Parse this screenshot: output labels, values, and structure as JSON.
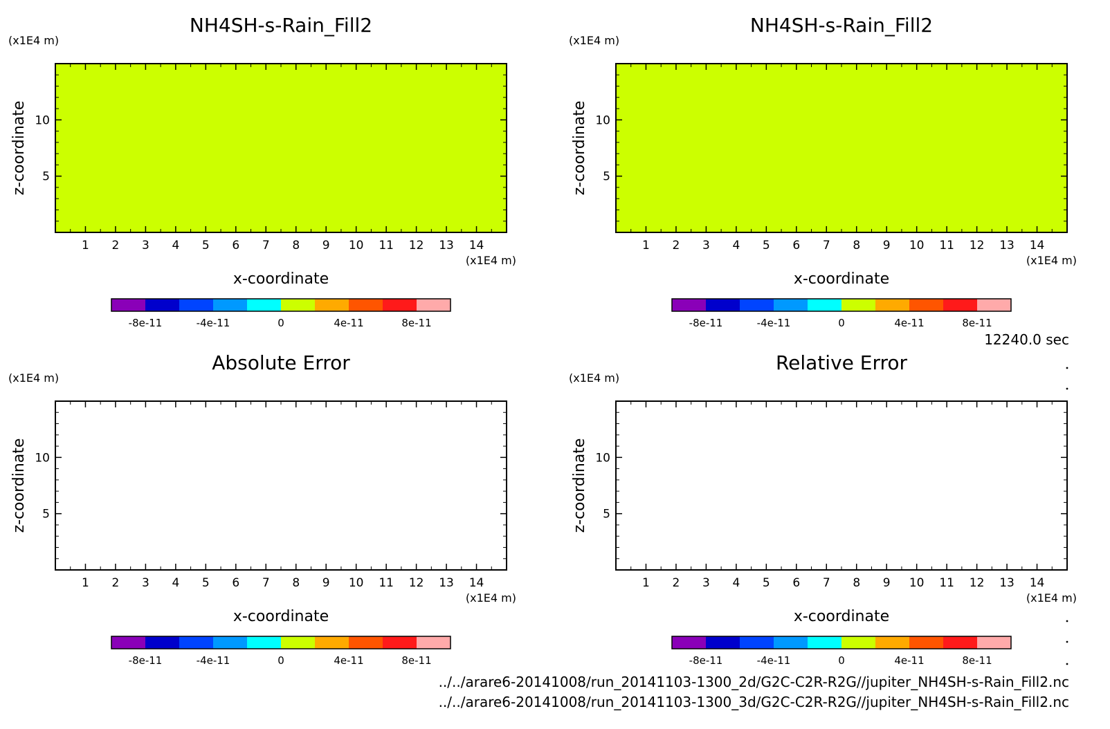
{
  "time_label": "12240.0 sec",
  "file_paths": [
    "../../arare6-20141008/run_20141103-1300_2d/G2C-C2R-R2G//jupiter_NH4SH-s-Rain_Fill2.nc",
    "../../arare6-20141008/run_20141103-1300_3d/G2C-C2R-R2G//jupiter_NH4SH-s-Rain_Fill2.nc"
  ],
  "colorbar": {
    "colors": [
      "#8a00b8",
      "#0000cc",
      "#0044ff",
      "#0099ff",
      "#00ffff",
      "#ccff00",
      "#ffaa00",
      "#ff5500",
      "#ff1a1a",
      "#ffaaaa"
    ],
    "bounds": [
      -1e-10,
      -8e-11,
      -6e-11,
      -4e-11,
      -2e-11,
      0,
      2e-11,
      4e-11,
      6e-11,
      8e-11,
      1e-10
    ],
    "tick_labels": [
      "-8e-11",
      "-4e-11",
      "0",
      "4e-11",
      "8e-11"
    ]
  },
  "chart_data": [
    {
      "type": "heatmap",
      "title": "NH4SH-s-Rain_Fill2",
      "xlabel": "x-coordinate",
      "ylabel": "z-coordinate",
      "x_unit": "(x1E4 m)",
      "z_unit": "(x1E4 m)",
      "xlim": [
        0,
        15
      ],
      "zlim": [
        0,
        15
      ],
      "x_ticks": [
        "1",
        "2",
        "3",
        "4",
        "5",
        "6",
        "7",
        "8",
        "9",
        "10",
        "11",
        "12",
        "13",
        "14"
      ],
      "z_ticks": [
        "5",
        "10"
      ],
      "field_value": 0,
      "fill": true
    },
    {
      "type": "heatmap",
      "title": "NH4SH-s-Rain_Fill2",
      "xlabel": "x-coordinate",
      "ylabel": "z-coordinate",
      "x_unit": "(x1E4 m)",
      "z_unit": "(x1E4 m)",
      "xlim": [
        0,
        15
      ],
      "zlim": [
        0,
        15
      ],
      "x_ticks": [
        "1",
        "2",
        "3",
        "4",
        "5",
        "6",
        "7",
        "8",
        "9",
        "10",
        "11",
        "12",
        "13",
        "14"
      ],
      "z_ticks": [
        "5",
        "10"
      ],
      "field_value": 0,
      "fill": true
    },
    {
      "type": "heatmap",
      "title": "Absolute Error",
      "xlabel": "x-coordinate",
      "ylabel": "z-coordinate",
      "x_unit": "(x1E4 m)",
      "z_unit": "(x1E4 m)",
      "xlim": [
        0,
        15
      ],
      "zlim": [
        0,
        15
      ],
      "x_ticks": [
        "1",
        "2",
        "3",
        "4",
        "5",
        "6",
        "7",
        "8",
        "9",
        "10",
        "11",
        "12",
        "13",
        "14"
      ],
      "z_ticks": [
        "5",
        "10"
      ],
      "field_value": null,
      "fill": false
    },
    {
      "type": "heatmap",
      "title": "Relative Error",
      "xlabel": "x-coordinate",
      "ylabel": "z-coordinate",
      "x_unit": "(x1E4 m)",
      "z_unit": "(x1E4 m)",
      "xlim": [
        0,
        15
      ],
      "zlim": [
        0,
        15
      ],
      "x_ticks": [
        "1",
        "2",
        "3",
        "4",
        "5",
        "6",
        "7",
        "8",
        "9",
        "10",
        "11",
        "12",
        "13",
        "14"
      ],
      "z_ticks": [
        "5",
        "10"
      ],
      "field_value": null,
      "fill": false
    }
  ]
}
